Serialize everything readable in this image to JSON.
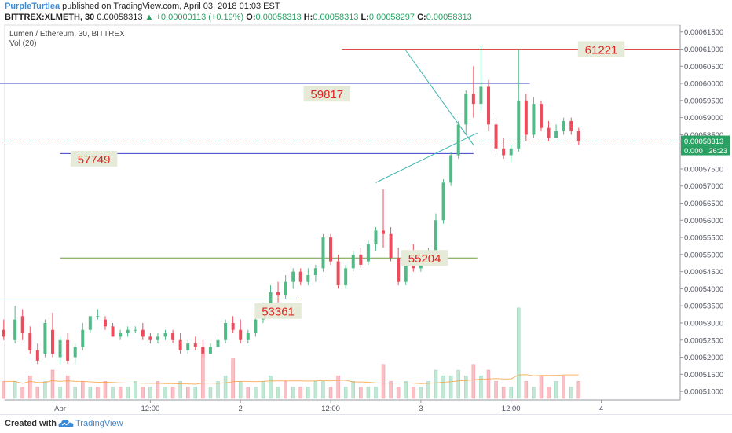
{
  "header": {
    "author": "PurpleTurtlea",
    "published_text": "published on TradingView.com, April 03, 2018 01:03 EST",
    "symbol": "BITTREX:XLMETH, 30",
    "price": "0.00058313",
    "change": "▲ +0.00000113 (+0.19%)",
    "o_label": "O:",
    "o_value": "0.00058313",
    "h_label": "H:",
    "h_value": "0.00058313",
    "l_label": "L:",
    "l_value": "0.00058297",
    "c_label": "C:",
    "c_value": "0.00058313"
  },
  "pane": {
    "title": "Lumen / Ethereum, 30, BITTREX",
    "volume_label": "Vol (20)"
  },
  "last_price_label": "0.00058313",
  "countdown_label": "26:23",
  "partial_axis_label": "0.000",
  "footer": {
    "created_with": "Created with",
    "brand": "TradingView"
  },
  "colors": {
    "up": "#53b987",
    "down": "#eb4d5c",
    "blue_line": "#3a3fce",
    "red_line": "#e24c4c",
    "green_line": "#6a9e3c",
    "teal_line": "#3bb5b0",
    "label_bg": "#e6ebd9",
    "label_text": "#e0241e",
    "dotted_price": "#2aa163"
  },
  "chart_data": {
    "type": "candlestick",
    "symbol": "XLM/ETH",
    "interval": "30",
    "y_axis_ticks": [
      "0.00061500",
      "0.00061000",
      "0.00060500",
      "0.00060000",
      "0.00059500",
      "0.00059000",
      "0.00058500",
      "0.00058000",
      "0.00057500",
      "0.00057000",
      "0.00056500",
      "0.00056000",
      "0.00055500",
      "0.00055000",
      "0.00054500",
      "0.00054000",
      "0.00053500",
      "0.00053000",
      "0.00052500",
      "0.00052000",
      "0.00051500",
      "0.00051000"
    ],
    "y_axis_tick_values": [
      0.000615,
      0.00061,
      0.000605,
      0.0006,
      0.000595,
      0.00059,
      0.000585,
      0.00058,
      0.000575,
      0.00057,
      0.000565,
      0.00056,
      0.000555,
      0.00055,
      0.000545,
      0.00054,
      0.000535,
      0.00053,
      0.000525,
      0.00052,
      0.000515,
      0.00051
    ],
    "ylim": [
      0.0005075,
      0.000617
    ],
    "x_axis_labels": [
      "Apr",
      "12:00",
      "2",
      "12:00",
      "3",
      "12:00",
      "4"
    ],
    "x_axis_times": [
      0,
      24,
      48,
      72,
      96,
      120,
      144
    ],
    "xlim": [
      -16,
      165
    ],
    "last_price": 0.00058313,
    "horizontal_levels": [
      {
        "label": "61221",
        "price": 0.00061,
        "color": "red",
        "from": 75,
        "to": 165
      },
      {
        "label": "",
        "price": 0.0006,
        "color": "blue",
        "from": -16,
        "to": 125
      },
      {
        "label": "57749",
        "price": 0.0005795,
        "color": "blue",
        "from": 0,
        "to": 110
      },
      {
        "label": "55204",
        "price": 0.000549,
        "color": "green",
        "from": 0,
        "to": 111
      },
      {
        "label": "",
        "price": 0.000537,
        "color": "blue",
        "from": -16,
        "to": 63
      }
    ],
    "level_labels": [
      {
        "text": "61221",
        "t": 144,
        "price": 0.00061
      },
      {
        "text": "59817",
        "t": 71,
        "price": 0.000597
      },
      {
        "text": "57749",
        "t": 9,
        "price": 0.000578
      },
      {
        "text": "55204",
        "t": 97,
        "price": 0.000549
      },
      {
        "text": "53361",
        "t": 58,
        "price": 0.0005335
      }
    ],
    "trendlines": [
      {
        "t1": 92,
        "p1": 0.0006096,
        "t2": 110,
        "p2": 0.000582
      },
      {
        "t1": 84,
        "p1": 0.000571,
        "t2": 111,
        "p2": 0.0005855
      }
    ],
    "candles": [
      [
        -15,
        0.000528,
        0.000531,
        0.000526,
        0.000525
      ],
      [
        -12,
        0.000525,
        0.000535,
        0.000531,
        0.000524
      ],
      [
        -10,
        0.000532,
        0.000534,
        0.000527,
        0.000525
      ],
      [
        -8,
        0.000527,
        0.000529,
        0.000522,
        0.000521
      ],
      [
        -6,
        0.000522,
        0.000524,
        0.000519,
        0.000518
      ],
      [
        -4,
        0.000521,
        0.000531,
        0.00053,
        0.00052
      ],
      [
        -2,
        0.000528,
        0.000533,
        0.000521,
        0.00052
      ],
      [
        0,
        0.00052,
        0.000526,
        0.000525,
        0.000518
      ],
      [
        2,
        0.000525,
        0.000527,
        0.000519,
        0.000518
      ],
      [
        4,
        0.00052,
        0.000524,
        0.000523,
        0.000518
      ],
      [
        6,
        0.000523,
        0.00053,
        0.000528,
        0.000522
      ],
      [
        8,
        0.000528,
        0.00053,
        0.000532,
        0.000527
      ],
      [
        10,
        0.000532,
        0.000534,
        0.000532,
        0.000531
      ],
      [
        12,
        0.000531,
        0.000532,
        0.000529,
        0.000528
      ],
      [
        14,
        0.000529,
        0.00053,
        0.000526,
        0.000526
      ],
      [
        16,
        0.000526,
        0.000528,
        0.000527,
        0.000525
      ],
      [
        18,
        0.000527,
        0.000529,
        0.000528,
        0.000526
      ],
      [
        20,
        0.000528,
        0.000529,
        0.000528,
        0.000527
      ],
      [
        22,
        0.000528,
        0.00053,
        0.000526,
        0.000525
      ],
      [
        24,
        0.000526,
        0.000527,
        0.000525,
        0.000524
      ],
      [
        26,
        0.000525,
        0.000527,
        0.000526,
        0.000524
      ],
      [
        28,
        0.000526,
        0.000528,
        0.000527,
        0.000525
      ],
      [
        30,
        0.000527,
        0.000528,
        0.000525,
        0.000524
      ],
      [
        32,
        0.000525,
        0.000527,
        0.000522,
        0.000521
      ],
      [
        34,
        0.000522,
        0.000525,
        0.000524,
        0.000521
      ],
      [
        36,
        0.000524,
        0.000526,
        0.000523,
        0.000522
      ],
      [
        38,
        0.000523,
        0.000525,
        0.000521,
        0.00052
      ],
      [
        40,
        0.000521,
        0.000524,
        0.000523,
        0.000521
      ],
      [
        42,
        0.000523,
        0.000526,
        0.000525,
        0.000522
      ],
      [
        44,
        0.000525,
        0.000531,
        0.00053,
        0.000524
      ],
      [
        46,
        0.00053,
        0.000532,
        0.000528,
        0.000527
      ],
      [
        48,
        0.000528,
        0.000531,
        0.000525,
        0.000524
      ],
      [
        50,
        0.000525,
        0.000528,
        0.000527,
        0.000524
      ],
      [
        52,
        0.000527,
        0.000532,
        0.000531,
        0.000526
      ],
      [
        54,
        0.000531,
        0.000536,
        0.000535,
        0.00053
      ],
      [
        56,
        0.000535,
        0.000541,
        0.000539,
        0.000534
      ],
      [
        58,
        0.000539,
        0.000542,
        0.000538,
        0.000536
      ],
      [
        60,
        0.000538,
        0.000544,
        0.000542,
        0.000537
      ],
      [
        62,
        0.000542,
        0.000546,
        0.000545,
        0.00054
      ],
      [
        64,
        0.000545,
        0.000546,
        0.000542,
        0.000541
      ],
      [
        66,
        0.000542,
        0.000546,
        0.000544,
        0.000541
      ],
      [
        68,
        0.000544,
        0.000547,
        0.000546,
        0.000542
      ],
      [
        70,
        0.000546,
        0.000556,
        0.000555,
        0.000545
      ],
      [
        72,
        0.000555,
        0.000556,
        0.000548,
        0.000547
      ],
      [
        74,
        0.000548,
        0.00055,
        0.000541,
        0.00054
      ],
      [
        76,
        0.000541,
        0.000547,
        0.000546,
        0.00054
      ],
      [
        78,
        0.000546,
        0.000551,
        0.00055,
        0.000545
      ],
      [
        80,
        0.00055,
        0.000552,
        0.000547,
        0.000546
      ],
      [
        82,
        0.000548,
        0.000554,
        0.000553,
        0.000547
      ],
      [
        84,
        0.000553,
        0.000558,
        0.000557,
        0.000551
      ],
      [
        86,
        0.000557,
        0.000569,
        0.000556,
        0.000552
      ],
      [
        88,
        0.000556,
        0.000558,
        0.000549,
        0.000548
      ],
      [
        90,
        0.000549,
        0.000552,
        0.000542,
        0.000541
      ],
      [
        92,
        0.000542,
        0.000551,
        0.00055,
        0.000541
      ],
      [
        94,
        0.00055,
        0.000553,
        0.000546,
        0.000545
      ],
      [
        96,
        0.000546,
        0.00055,
        0.000549,
        0.000545
      ],
      [
        98,
        0.000549,
        0.000552,
        0.000551,
        0.000548
      ],
      [
        100,
        0.000551,
        0.000562,
        0.00056,
        0.00055
      ],
      [
        102,
        0.00056,
        0.000572,
        0.000571,
        0.000559
      ],
      [
        104,
        0.000571,
        0.00058,
        0.000579,
        0.00057
      ],
      [
        106,
        0.000579,
        0.000589,
        0.000588,
        0.000578
      ],
      [
        108,
        0.000588,
        0.000598,
        0.000597,
        0.000585
      ],
      [
        110,
        0.000597,
        0.000605,
        0.000594,
        0.00059
      ],
      [
        112,
        0.000594,
        0.000611,
        0.000599,
        0.000592
      ],
      [
        114,
        0.000599,
        0.000601,
        0.000588,
        0.000586
      ],
      [
        116,
        0.000588,
        0.00059,
        0.000581,
        0.000579
      ],
      [
        118,
        0.000581,
        0.000584,
        0.000579,
        0.000578
      ],
      [
        120,
        0.000579,
        0.000582,
        0.000581,
        0.000577
      ],
      [
        122,
        0.000581,
        0.00061,
        0.000595,
        0.00058
      ],
      [
        124,
        0.000595,
        0.000597,
        0.000585,
        0.000583
      ],
      [
        126,
        0.000585,
        0.000596,
        0.000594,
        0.000584
      ],
      [
        128,
        0.000594,
        0.000595,
        0.000587,
        0.000586
      ],
      [
        130,
        0.000587,
        0.000589,
        0.000584,
        0.000583
      ],
      [
        132,
        0.000584,
        0.000588,
        0.000586,
        0.000584
      ],
      [
        134,
        0.000586,
        0.00059,
        0.000589,
        0.000585
      ],
      [
        136,
        0.000589,
        0.00059,
        0.000586,
        0.000585
      ],
      [
        138,
        0.000586,
        0.000587,
        0.000583,
        0.000582
      ]
    ],
    "volume": [
      [
        -15,
        3,
        0
      ],
      [
        -12,
        3,
        1
      ],
      [
        -10,
        2,
        0
      ],
      [
        -8,
        4,
        0
      ],
      [
        -6,
        2,
        0
      ],
      [
        -4,
        3,
        1
      ],
      [
        -2,
        5,
        0
      ],
      [
        0,
        2,
        1
      ],
      [
        2,
        4,
        0
      ],
      [
        4,
        2,
        1
      ],
      [
        6,
        3,
        0
      ],
      [
        8,
        2,
        1
      ],
      [
        10,
        2,
        0
      ],
      [
        12,
        3,
        0
      ],
      [
        14,
        2,
        1
      ],
      [
        16,
        2,
        0
      ],
      [
        18,
        2,
        1
      ],
      [
        20,
        3,
        1
      ],
      [
        22,
        2,
        0
      ],
      [
        24,
        2,
        1
      ],
      [
        26,
        3,
        0
      ],
      [
        28,
        2,
        1
      ],
      [
        30,
        2,
        0
      ],
      [
        32,
        3,
        1
      ],
      [
        34,
        2,
        0
      ],
      [
        36,
        2,
        1
      ],
      [
        38,
        9,
        0
      ],
      [
        40,
        2,
        1
      ],
      [
        42,
        3,
        1
      ],
      [
        44,
        4,
        1
      ],
      [
        46,
        7,
        0
      ],
      [
        48,
        3,
        1
      ],
      [
        50,
        2,
        0
      ],
      [
        52,
        2,
        1
      ],
      [
        54,
        3,
        1
      ],
      [
        56,
        4,
        1
      ],
      [
        58,
        2,
        1
      ],
      [
        60,
        3,
        0
      ],
      [
        62,
        2,
        1
      ],
      [
        64,
        2,
        0
      ],
      [
        66,
        2,
        1
      ],
      [
        68,
        3,
        1
      ],
      [
        70,
        3,
        1
      ],
      [
        72,
        2,
        0
      ],
      [
        74,
        4,
        0
      ],
      [
        76,
        2,
        1
      ],
      [
        78,
        3,
        1
      ],
      [
        80,
        2,
        0
      ],
      [
        82,
        2,
        1
      ],
      [
        84,
        2,
        1
      ],
      [
        86,
        6,
        0
      ],
      [
        88,
        3,
        0
      ],
      [
        90,
        2,
        0
      ],
      [
        92,
        3,
        1
      ],
      [
        94,
        2,
        0
      ],
      [
        96,
        2,
        1
      ],
      [
        98,
        3,
        1
      ],
      [
        100,
        5,
        1
      ],
      [
        102,
        4,
        1
      ],
      [
        104,
        4,
        1
      ],
      [
        106,
        5,
        1
      ],
      [
        108,
        4,
        1
      ],
      [
        110,
        6,
        0
      ],
      [
        112,
        4,
        1
      ],
      [
        114,
        5,
        0
      ],
      [
        116,
        3,
        0
      ],
      [
        118,
        2,
        0
      ],
      [
        120,
        2,
        1
      ],
      [
        122,
        16,
        1
      ],
      [
        124,
        3,
        0
      ],
      [
        126,
        2,
        1
      ],
      [
        128,
        4,
        0
      ],
      [
        130,
        2,
        0
      ],
      [
        132,
        3,
        1
      ],
      [
        134,
        4,
        0
      ],
      [
        136,
        2,
        1
      ],
      [
        138,
        3,
        0
      ]
    ]
  }
}
